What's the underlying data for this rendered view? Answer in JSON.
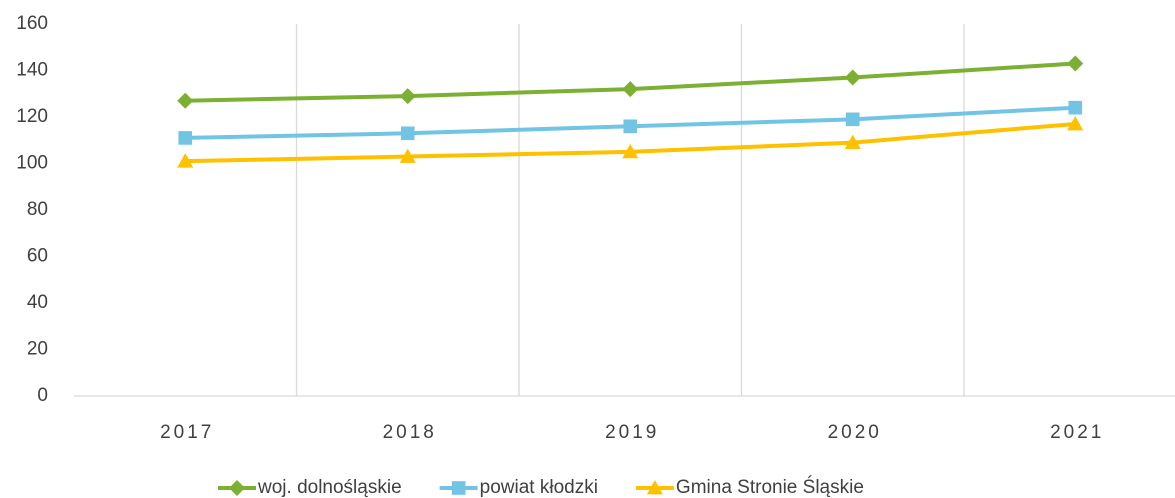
{
  "chart_data": {
    "type": "line",
    "categories": [
      "2017",
      "2018",
      "2019",
      "2020",
      "2021"
    ],
    "series": [
      {
        "name": "woj. dolnośląskie",
        "color": "#7cb032",
        "marker": "diamond",
        "values": [
          127,
          129,
          132,
          137,
          143
        ]
      },
      {
        "name": "powiat kłodzki",
        "color": "#72c4e5",
        "marker": "square",
        "values": [
          111,
          113,
          116,
          119,
          124
        ]
      },
      {
        "name": "Gmina Stronie Śląskie",
        "color": "#ffc000",
        "marker": "triangle",
        "values": [
          101,
          103,
          105,
          109,
          117
        ]
      }
    ],
    "ylim": [
      0,
      160
    ],
    "yticks": [
      0,
      20,
      40,
      60,
      80,
      100,
      120,
      140,
      160
    ],
    "grid": "x",
    "legend": "bottom"
  }
}
